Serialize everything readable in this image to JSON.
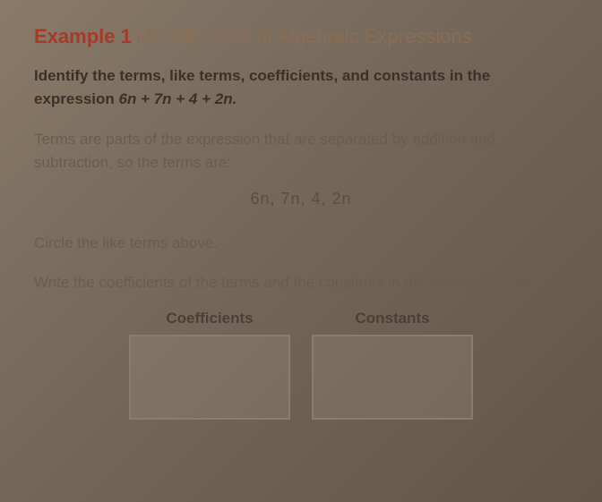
{
  "header": {
    "example_label": "Example 1",
    "title": "Identify Parts of Algebraic Expressions"
  },
  "prompt": {
    "line1": "Identify the terms, like terms, coefficients, and constants in the",
    "line2_prefix": "expression ",
    "expression": "6n + 7n + 4 + 2n."
  },
  "body": {
    "p1": "Terms are parts of the expression that are separated by addition and subtraction, so the terms are:",
    "terms": "6n, 7n,  4,  2n",
    "p2": "Circle the like terms above.",
    "p3": "Write the coefficients of the terms and the constants in the appropriate bin."
  },
  "boxes": {
    "left_label": "Coefficients",
    "right_label": "Constants"
  },
  "style": {
    "accent_color": "#a63a2a",
    "title_color": "#8a6d55",
    "text_color": "#6a5d4d",
    "bold_color": "#3a3228",
    "box_border": "#8a7d6a",
    "font_body": 17,
    "font_header": 22
  }
}
